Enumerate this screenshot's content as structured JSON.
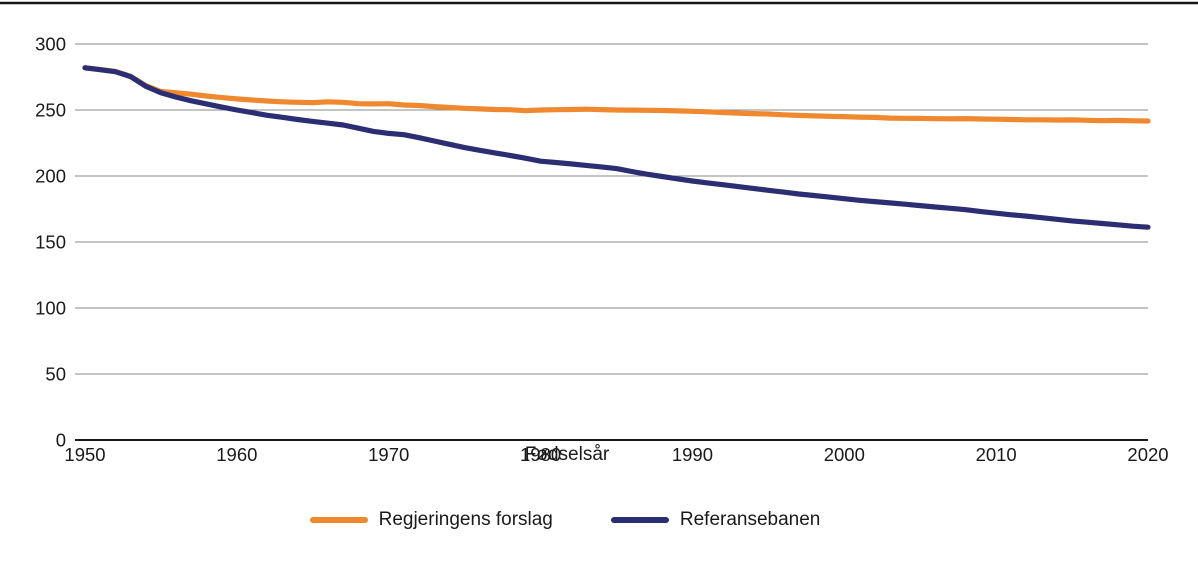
{
  "chart_data": {
    "type": "line",
    "title": "",
    "xlabel": "Fødselsår",
    "ylabel": "",
    "xlim": [
      1950,
      2020
    ],
    "ylim": [
      0,
      300
    ],
    "x_ticks": [
      1950,
      1960,
      1970,
      1980,
      1990,
      2000,
      2010,
      2020
    ],
    "y_ticks": [
      0,
      50,
      100,
      150,
      200,
      250,
      300
    ],
    "grid": "horizontal-only",
    "legend_position": "bottom-center",
    "axis_color": "#1a1a1a",
    "gridline_color": "#8a8a8a",
    "top_border_color": "#161616",
    "years": [
      1950,
      1951,
      1952,
      1953,
      1954,
      1955,
      1956,
      1957,
      1958,
      1959,
      1960,
      1961,
      1962,
      1963,
      1964,
      1965,
      1966,
      1967,
      1968,
      1969,
      1970,
      1971,
      1972,
      1973,
      1974,
      1975,
      1976,
      1977,
      1978,
      1979,
      1980,
      1981,
      1982,
      1983,
      1984,
      1985,
      1986,
      1987,
      1988,
      1989,
      1990,
      1991,
      1992,
      1993,
      1994,
      1995,
      1996,
      1997,
      1998,
      1999,
      2000,
      2001,
      2002,
      2003,
      2004,
      2005,
      2006,
      2007,
      2008,
      2009,
      2010,
      2011,
      2012,
      2013,
      2014,
      2015,
      2016,
      2017,
      2018,
      2019,
      2020
    ],
    "series": [
      {
        "name": "Regjeringens forslag",
        "color": "#F0882F",
        "values": [
          282,
          280.6,
          279.2,
          275.5,
          268.5,
          264,
          263,
          262,
          260.6,
          259.4,
          258.4,
          257.6,
          256.8,
          256.2,
          255.8,
          255.6,
          256.2,
          255.8,
          254.8,
          254.6,
          254.8,
          253.8,
          253.4,
          252.6,
          251.9,
          251.3,
          250.8,
          250.4,
          250.2,
          249.5,
          250,
          250.2,
          250.4,
          250.6,
          250.3,
          250,
          249.9,
          249.8,
          249.6,
          249.3,
          249,
          248.6,
          248.1,
          247.6,
          247.3,
          247,
          246.4,
          245.9,
          245.5,
          245.2,
          245,
          244.6,
          244.4,
          243.9,
          243.7,
          243.6,
          243.4,
          243.3,
          243.5,
          243.2,
          243,
          242.8,
          242.6,
          242.6,
          242.4,
          242.5,
          242.2,
          242,
          242.1,
          241.8,
          241.7
        ]
      },
      {
        "name": "Referansebanen",
        "color": "#2B2E72",
        "values": [
          282,
          280.5,
          279,
          275.3,
          268,
          263,
          259.8,
          257,
          254.6,
          252.2,
          250,
          248,
          246,
          244.5,
          242.8,
          241.4,
          240,
          238.6,
          236.2,
          233.8,
          232.3,
          231.3,
          229,
          226.5,
          224,
          221.5,
          219.5,
          217.5,
          215.5,
          213.5,
          211.2,
          210.2,
          209.2,
          208,
          206.9,
          205.6,
          203.4,
          201.4,
          199.6,
          197.9,
          196.2,
          194.8,
          193.4,
          192,
          190.6,
          189.2,
          187.8,
          186.4,
          185.2,
          184,
          182.8,
          181.6,
          180.6,
          179.6,
          178.6,
          177.6,
          176.5,
          175.5,
          174.5,
          173,
          171.8,
          170.6,
          169.6,
          168.4,
          167.2,
          166,
          165,
          164,
          163,
          162,
          161.2
        ]
      }
    ]
  }
}
